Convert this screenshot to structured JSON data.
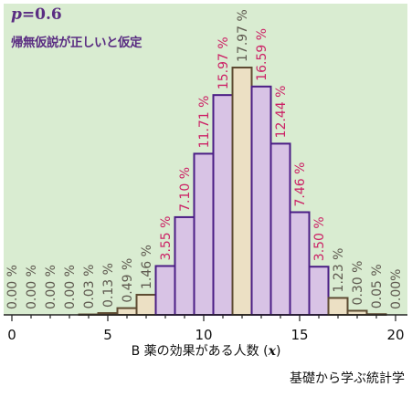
{
  "chart_data": {
    "type": "bar",
    "categories": [
      0,
      1,
      2,
      3,
      4,
      5,
      6,
      7,
      8,
      9,
      10,
      11,
      12,
      13,
      14,
      15,
      16,
      17,
      18,
      19,
      20
    ],
    "values": [
      0.0,
      0.0,
      0.0,
      0.0,
      0.03,
      0.13,
      0.49,
      1.46,
      3.55,
      7.1,
      11.71,
      15.97,
      17.97,
      16.59,
      12.44,
      7.46,
      3.5,
      1.23,
      0.3,
      0.05,
      0.0
    ],
    "value_labels": [
      "0.00 %",
      "0.00 %",
      "0.00 %",
      "0.00 %",
      "0.03 %",
      "0.13 %",
      "0.49 %",
      "1.46 %",
      "3.55 %",
      "7.10 %",
      "11.71 %",
      "15.97 %",
      "17.97 %",
      "16.59 %",
      "12.44 %",
      "7.46 %",
      "3.50 %",
      "1.23 %",
      "0.30 %",
      "0.05 %",
      "0.00%"
    ],
    "highlight": [
      8,
      9,
      10,
      11,
      13,
      14,
      15,
      16
    ],
    "xlabel_prefix": "B 薬の効果がある人数",
    "xlabel_var": "x",
    "xticks": [
      0,
      5,
      10,
      15,
      20
    ],
    "xlim": [
      -0.5,
      20.5
    ],
    "ylim": [
      0,
      18.5
    ],
    "colors": {
      "background": "#d9ecd1",
      "bar_normal_fill": "#ece0c4",
      "bar_normal_stroke": "#5e4b32",
      "bar_highlight_fill": "#d8c3e5",
      "bar_highlight_stroke": "#4a1d85",
      "label_normal": "#5f5a50",
      "label_highlight": "#cc2266"
    }
  },
  "annotation": {
    "p_var": "p",
    "p_eq": "=0.6",
    "hypothesis": "帰無仮説が正しいと仮定"
  },
  "credit": "基礎から学ぶ統計学"
}
